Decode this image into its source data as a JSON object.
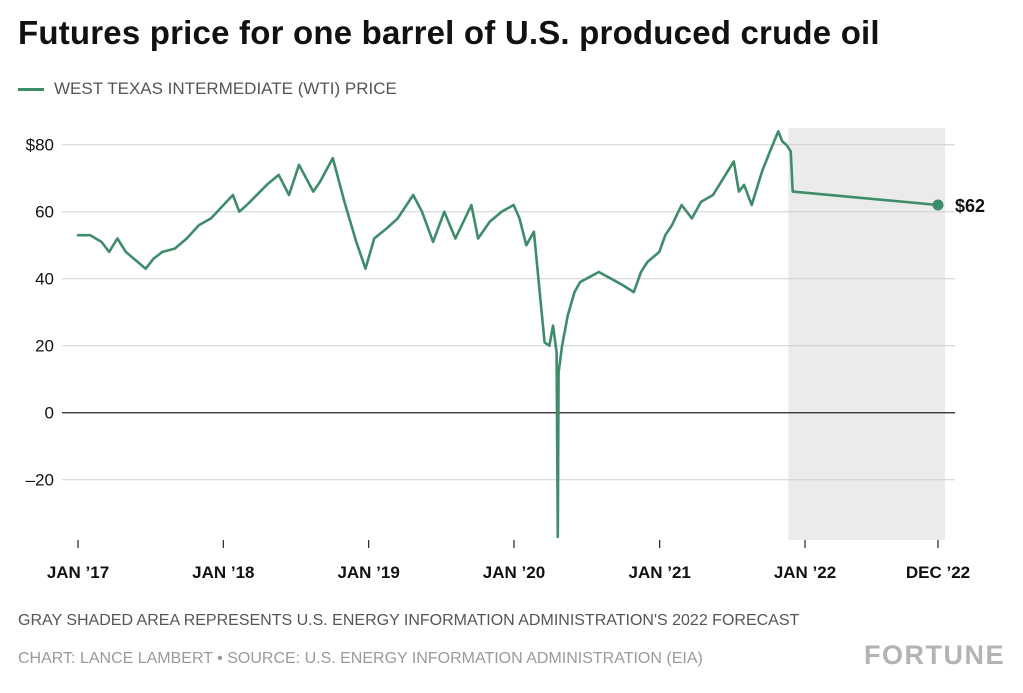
{
  "chart_data": {
    "type": "line",
    "title": "Futures price for one barrel of U.S. produced crude oil",
    "legend": {
      "position": "top-left",
      "entries": [
        "WEST TEXAS INTERMEDIATE (WTI) PRICE"
      ]
    },
    "ylim": [
      -38,
      85
    ],
    "yticks": [
      {
        "value": 80,
        "label": "$80"
      },
      {
        "value": 60,
        "label": "60"
      },
      {
        "value": 40,
        "label": "40"
      },
      {
        "value": 20,
        "label": "20"
      },
      {
        "value": 0,
        "label": "0"
      },
      {
        "value": -20,
        "label": "–20"
      }
    ],
    "xlim": [
      "2017-01-01",
      "2022-12-01"
    ],
    "xticks": [
      {
        "value": "2017-01-01",
        "label": "JAN ’17"
      },
      {
        "value": "2018-01-01",
        "label": "JAN ’18"
      },
      {
        "value": "2019-01-01",
        "label": "JAN ’19"
      },
      {
        "value": "2020-01-01",
        "label": "JAN ’20"
      },
      {
        "value": "2021-01-01",
        "label": "JAN ’21"
      },
      {
        "value": "2022-01-01",
        "label": "JAN ’22"
      },
      {
        "value": "2022-12-01",
        "label": "DEC ’22"
      }
    ],
    "grid": true,
    "forecast_shading": {
      "start": "2021-11-20",
      "end": "2022-12-01"
    },
    "series": [
      {
        "name": "WEST TEXAS INTERMEDIATE (WTI) PRICE",
        "color": "#3e8c6a",
        "x": [
          "2017-01-01",
          "2017-02-01",
          "2017-03-01",
          "2017-03-20",
          "2017-04-10",
          "2017-05-01",
          "2017-06-20",
          "2017-07-10",
          "2017-08-01",
          "2017-09-01",
          "2017-10-01",
          "2017-11-01",
          "2017-12-01",
          "2018-01-25",
          "2018-02-10",
          "2018-03-01",
          "2018-04-20",
          "2018-05-20",
          "2018-06-15",
          "2018-07-10",
          "2018-08-15",
          "2018-09-01",
          "2018-10-03",
          "2018-11-01",
          "2018-12-01",
          "2018-12-24",
          "2019-01-15",
          "2019-02-15",
          "2019-03-15",
          "2019-04-23",
          "2019-05-15",
          "2019-06-12",
          "2019-07-10",
          "2019-08-07",
          "2019-09-16",
          "2019-10-03",
          "2019-11-01",
          "2019-12-01",
          "2019-12-31",
          "2020-01-15",
          "2020-02-01",
          "2020-02-20",
          "2020-03-09",
          "2020-03-18",
          "2020-03-30",
          "2020-04-08",
          "2020-04-17",
          "2020-04-20",
          "2020-04-22",
          "2020-05-01",
          "2020-05-15",
          "2020-06-01",
          "2020-06-15",
          "2020-07-01",
          "2020-08-01",
          "2020-09-01",
          "2020-10-01",
          "2020-10-28",
          "2020-11-15",
          "2020-12-01",
          "2020-12-31",
          "2021-01-15",
          "2021-02-01",
          "2021-02-25",
          "2021-03-23",
          "2021-04-15",
          "2021-05-15",
          "2021-06-15",
          "2021-07-06",
          "2021-07-19",
          "2021-08-01",
          "2021-08-20",
          "2021-09-15",
          "2021-10-05",
          "2021-10-26",
          "2021-11-05",
          "2021-11-15",
          "2021-11-26",
          "2021-12-01",
          "2022-12-01"
        ],
        "values": [
          53,
          53,
          51,
          48,
          52,
          48,
          43,
          46,
          48,
          49,
          52,
          56,
          58,
          65,
          60,
          62,
          68,
          71,
          65,
          74,
          66,
          69,
          76,
          63,
          51,
          43,
          52,
          55,
          58,
          65,
          60,
          51,
          60,
          52,
          62,
          52,
          57,
          60,
          62,
          58,
          50,
          54,
          32,
          21,
          20,
          26,
          18,
          -37,
          12,
          20,
          29,
          36,
          39,
          40,
          42,
          40,
          38,
          36,
          42,
          45,
          48,
          53,
          56,
          62,
          58,
          63,
          65,
          71,
          75,
          66,
          68,
          62,
          72,
          78,
          84,
          81,
          80,
          78,
          66,
          62
        ]
      }
    ],
    "end_label": "$62"
  },
  "notes": {
    "forecast": "GRAY SHADED AREA REPRESENTS U.S. ENERGY INFORMATION ADMINISTRATION'S 2022 FORECAST",
    "credit": "CHART: LANCE LAMBERT • SOURCE: U.S. ENERGY INFORMATION ADMINISTRATION (EIA)"
  },
  "brand": "FORTUNE",
  "colors": {
    "line": "#3e8c6a",
    "shading": "#ebebeb",
    "grid": "#d0d0d0",
    "zero_line": "#222222"
  }
}
